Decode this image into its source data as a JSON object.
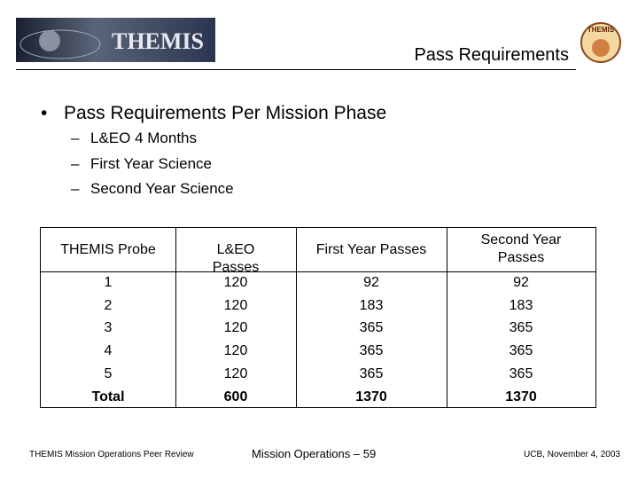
{
  "header": {
    "logo_text": "THEMIS",
    "title": "Pass Requirements"
  },
  "bullet": {
    "text": "Pass Requirements Per Mission Phase",
    "subitems": [
      "L&EO 4 Months",
      "First Year Science",
      "Second Year Science"
    ]
  },
  "table": {
    "columns": [
      "THEMIS Probe",
      "L&EO Passes",
      "First Year Passes",
      "Second Year Passes"
    ],
    "rows": [
      [
        1,
        120,
        92,
        92
      ],
      [
        2,
        120,
        183,
        183
      ],
      [
        3,
        120,
        365,
        365
      ],
      [
        4,
        120,
        365,
        365
      ],
      [
        5,
        120,
        365,
        365
      ],
      [
        "Total",
        600,
        1370,
        1370
      ]
    ]
  },
  "footer": {
    "left": "THEMIS Mission Operations Peer Review",
    "center": "Mission Operations – 59",
    "right": "UCB, November 4, 2003"
  }
}
